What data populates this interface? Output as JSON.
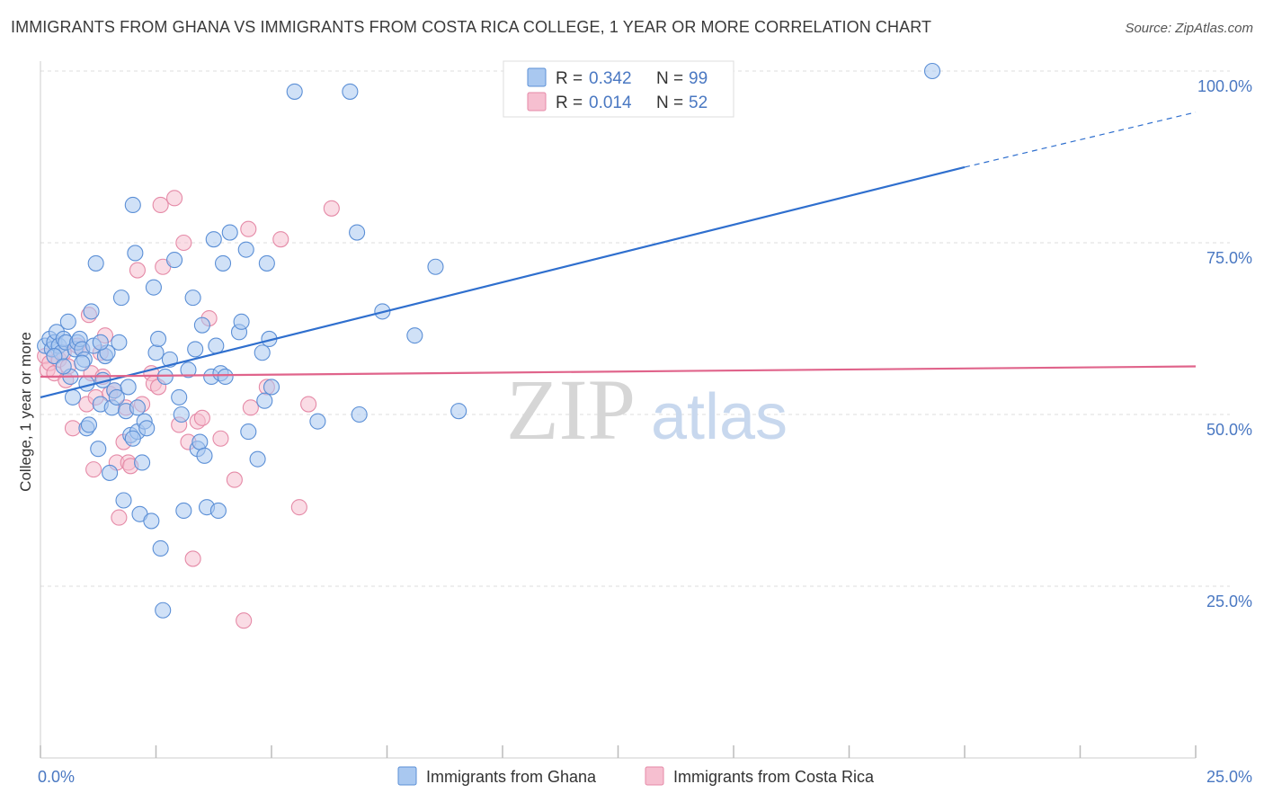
{
  "title": "IMMIGRANTS FROM GHANA VS IMMIGRANTS FROM COSTA RICA COLLEGE, 1 YEAR OR MORE CORRELATION CHART",
  "source": "Source: ZipAtlas.com",
  "watermark": {
    "zip": "ZIP",
    "atlas": "atlas"
  },
  "colors": {
    "ghana_fill": "#a9c8f0",
    "ghana_stroke": "#5b8fd6",
    "ghana_line": "#2f6fce",
    "costa_fill": "#f6bfd0",
    "costa_stroke": "#e58aa7",
    "costa_line": "#e0648b",
    "tick_label": "#4a78c2",
    "grid": "#dddddd"
  },
  "legend": {
    "rows": [
      {
        "r_label": "R = ",
        "r_value": "0.342",
        "n_label": "N = ",
        "n_value": "99"
      },
      {
        "r_label": "R = ",
        "r_value": "0.014",
        "n_label": "N = ",
        "n_value": "52"
      }
    ]
  },
  "chart_data": {
    "type": "scatter",
    "title": "IMMIGRANTS FROM GHANA VS IMMIGRANTS FROM COSTA RICA COLLEGE, 1 YEAR OR MORE CORRELATION CHART",
    "xlabel": "",
    "ylabel": "College, 1 year or more",
    "xlim": [
      0,
      25
    ],
    "ylim": [
      0,
      100
    ],
    "x_tick_labels": [
      "0.0%",
      "25.0%"
    ],
    "y_tick_labels": [
      "25.0%",
      "50.0%",
      "75.0%",
      "100.0%"
    ],
    "y_ticks": [
      25,
      50,
      75,
      100
    ],
    "grid": true,
    "legend_position": "bottom",
    "series": [
      {
        "name": "Immigrants from Ghana",
        "R": 0.342,
        "N": 99,
        "trend": {
          "x0": 0,
          "y0": 52.5,
          "x1": 20,
          "y1": 86,
          "dashed_to_x": 25,
          "dashed_to_y": 94
        },
        "points": [
          [
            0.1,
            60
          ],
          [
            0.2,
            61
          ],
          [
            0.25,
            59.5
          ],
          [
            0.3,
            60.5
          ],
          [
            0.35,
            62
          ],
          [
            0.4,
            60
          ],
          [
            0.45,
            59
          ],
          [
            0.5,
            61
          ],
          [
            0.55,
            60.5
          ],
          [
            0.6,
            63.5
          ],
          [
            0.65,
            55.5
          ],
          [
            0.7,
            52.5
          ],
          [
            0.75,
            59.5
          ],
          [
            0.8,
            60.5
          ],
          [
            0.85,
            61
          ],
          [
            0.9,
            59.5
          ],
          [
            0.95,
            58
          ],
          [
            1.0,
            48
          ],
          [
            1.05,
            48.5
          ],
          [
            1.1,
            65
          ],
          [
            1.15,
            60
          ],
          [
            1.2,
            72
          ],
          [
            1.25,
            45
          ],
          [
            1.3,
            51.5
          ],
          [
            1.35,
            55
          ],
          [
            1.4,
            58.5
          ],
          [
            1.45,
            59
          ],
          [
            1.5,
            41.5
          ],
          [
            1.55,
            51
          ],
          [
            1.6,
            53.5
          ],
          [
            1.65,
            52.5
          ],
          [
            1.7,
            60.5
          ],
          [
            1.75,
            67
          ],
          [
            1.8,
            37.5
          ],
          [
            1.85,
            50.5
          ],
          [
            1.9,
            54
          ],
          [
            1.95,
            47
          ],
          [
            2.0,
            80.5
          ],
          [
            2.05,
            73.5
          ],
          [
            2.1,
            47.5
          ],
          [
            2.15,
            35.5
          ],
          [
            2.2,
            43
          ],
          [
            2.25,
            49
          ],
          [
            2.3,
            48
          ],
          [
            2.4,
            34.5
          ],
          [
            2.45,
            68.5
          ],
          [
            2.5,
            59
          ],
          [
            2.55,
            61
          ],
          [
            2.6,
            30.5
          ],
          [
            2.65,
            21.5
          ],
          [
            2.7,
            55.5
          ],
          [
            2.8,
            58
          ],
          [
            2.9,
            72.5
          ],
          [
            3.0,
            52.5
          ],
          [
            3.05,
            50
          ],
          [
            3.1,
            36
          ],
          [
            3.2,
            56.5
          ],
          [
            3.3,
            67
          ],
          [
            3.35,
            59.5
          ],
          [
            3.4,
            45
          ],
          [
            3.45,
            46
          ],
          [
            3.5,
            63
          ],
          [
            3.55,
            44
          ],
          [
            3.6,
            36.5
          ],
          [
            3.7,
            55.5
          ],
          [
            3.75,
            75.5
          ],
          [
            3.8,
            60
          ],
          [
            3.85,
            36
          ],
          [
            3.9,
            56
          ],
          [
            3.95,
            72
          ],
          [
            4.0,
            55.5
          ],
          [
            4.1,
            76.5
          ],
          [
            4.3,
            62
          ],
          [
            4.35,
            63.5
          ],
          [
            4.45,
            74
          ],
          [
            4.5,
            47.5
          ],
          [
            4.7,
            43.5
          ],
          [
            4.8,
            59
          ],
          [
            4.85,
            52
          ],
          [
            4.9,
            72
          ],
          [
            4.95,
            61
          ],
          [
            5.0,
            54
          ],
          [
            5.5,
            97
          ],
          [
            6.0,
            49
          ],
          [
            6.7,
            97
          ],
          [
            6.85,
            76.5
          ],
          [
            6.9,
            50
          ],
          [
            7.4,
            65
          ],
          [
            8.1,
            61.5
          ],
          [
            8.55,
            71.5
          ],
          [
            9.05,
            50.5
          ],
          [
            19.3,
            100
          ],
          [
            0.3,
            58.5
          ],
          [
            0.5,
            57
          ],
          [
            0.9,
            57.5
          ],
          [
            1.0,
            54.5
          ],
          [
            1.3,
            60.5
          ],
          [
            2.0,
            46.5
          ],
          [
            2.1,
            51
          ]
        ]
      },
      {
        "name": "Immigrants from Costa Rica",
        "R": 0.014,
        "N": 52,
        "trend": {
          "x0": 0,
          "y0": 55.5,
          "x1": 25,
          "y1": 57
        },
        "points": [
          [
            0.1,
            58.5
          ],
          [
            0.15,
            56.5
          ],
          [
            0.2,
            57.5
          ],
          [
            0.3,
            56
          ],
          [
            0.4,
            58
          ],
          [
            0.5,
            59
          ],
          [
            0.55,
            55
          ],
          [
            0.6,
            57
          ],
          [
            0.7,
            48
          ],
          [
            0.8,
            60
          ],
          [
            0.9,
            59.5
          ],
          [
            1.0,
            51.5
          ],
          [
            1.05,
            64.5
          ],
          [
            1.1,
            56
          ],
          [
            1.15,
            42
          ],
          [
            1.2,
            52.5
          ],
          [
            1.3,
            59
          ],
          [
            1.35,
            55.5
          ],
          [
            1.4,
            61.5
          ],
          [
            1.5,
            53
          ],
          [
            1.6,
            53.5
          ],
          [
            1.65,
            43
          ],
          [
            1.7,
            35
          ],
          [
            1.8,
            46
          ],
          [
            1.85,
            51
          ],
          [
            1.9,
            43
          ],
          [
            1.95,
            42.5
          ],
          [
            2.1,
            71
          ],
          [
            2.2,
            51.5
          ],
          [
            2.4,
            56
          ],
          [
            2.45,
            54.5
          ],
          [
            2.55,
            54
          ],
          [
            2.6,
            80.5
          ],
          [
            2.65,
            71.5
          ],
          [
            2.9,
            81.5
          ],
          [
            3.0,
            48.5
          ],
          [
            3.1,
            75
          ],
          [
            3.2,
            46
          ],
          [
            3.3,
            29
          ],
          [
            3.4,
            49
          ],
          [
            3.5,
            49.5
          ],
          [
            3.65,
            64
          ],
          [
            3.9,
            46.5
          ],
          [
            4.2,
            40.5
          ],
          [
            4.4,
            20
          ],
          [
            4.5,
            77
          ],
          [
            4.55,
            51
          ],
          [
            4.9,
            54
          ],
          [
            5.2,
            75.5
          ],
          [
            5.6,
            36.5
          ],
          [
            5.8,
            51.5
          ],
          [
            6.3,
            80
          ]
        ]
      }
    ]
  },
  "legend_bottom": {
    "items": [
      "Immigrants from Ghana",
      "Immigrants from Costa Rica"
    ]
  }
}
